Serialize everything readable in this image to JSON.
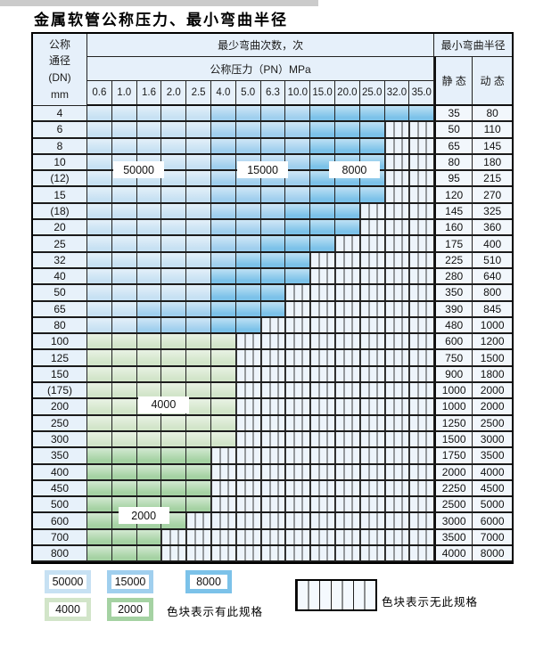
{
  "title": "金属软管公称压力、最小弯曲半径",
  "table": {
    "corner_header": "公称\n通径\n(DN)\nmm",
    "bend_cycles_header": "最少弯曲次数，次",
    "pressure_header": "公称压力（PN）MPa",
    "radius_header": "最小弯曲半径",
    "static_header": "静 态",
    "dynamic_header": "动 态",
    "pressure_columns": [
      "0.6",
      "1.0",
      "1.6",
      "2.0",
      "2.5",
      "4.0",
      "5.0",
      "6.3",
      "10.0",
      "15.0",
      "20.0",
      "25.0",
      "32.0",
      "35.0"
    ],
    "rows": [
      {
        "dn": "4",
        "static": "35",
        "dynamic": "80",
        "cells": "LLLLLMMMMDDDDD"
      },
      {
        "dn": "6",
        "static": "50",
        "dynamic": "110",
        "cells": "LLLLLMMMMDDDHH"
      },
      {
        "dn": "8",
        "static": "65",
        "dynamic": "145",
        "cells": "LLLLLMMMMDDDHH"
      },
      {
        "dn": "10",
        "static": "80",
        "dynamic": "180",
        "cells": "LLLLLMMMMDDDHH"
      },
      {
        "dn": "(12)",
        "static": "95",
        "dynamic": "215",
        "cells": "LLLLLMMMMDDDHH"
      },
      {
        "dn": "15",
        "static": "120",
        "dynamic": "270",
        "cells": "LLLLLMMMMDDDHH"
      },
      {
        "dn": "(18)",
        "static": "145",
        "dynamic": "325",
        "cells": "LLLLLMMMDDDHHH"
      },
      {
        "dn": "20",
        "static": "160",
        "dynamic": "360",
        "cells": "LLLLLMMMDDDHHH"
      },
      {
        "dn": "25",
        "static": "175",
        "dynamic": "400",
        "cells": "LLLLLMMDDDHHHH"
      },
      {
        "dn": "32",
        "static": "225",
        "dynamic": "510",
        "cells": "LLLLLMDDDHHHHH"
      },
      {
        "dn": "40",
        "static": "280",
        "dynamic": "640",
        "cells": "LLLLLDDDDHHHHH"
      },
      {
        "dn": "50",
        "static": "350",
        "dynamic": "800",
        "cells": "LLLLLDDDHHHHHH"
      },
      {
        "dn": "65",
        "static": "390",
        "dynamic": "845",
        "cells": "LLMMMDDDHHHHHH"
      },
      {
        "dn": "80",
        "static": "480",
        "dynamic": "1000",
        "cells": "LLMMMDDHHHHHHH"
      },
      {
        "dn": "100",
        "static": "600",
        "dynamic": "1200",
        "cells": "GGGGGGHHHHHHHH"
      },
      {
        "dn": "125",
        "static": "750",
        "dynamic": "1500",
        "cells": "GGGGGGHHHHHHHH"
      },
      {
        "dn": "150",
        "static": "900",
        "dynamic": "1800",
        "cells": "GGGGGGHHHHHHHH"
      },
      {
        "dn": "(175)",
        "static": "1000",
        "dynamic": "2000",
        "cells": "GGGGGGHHHHHHHH"
      },
      {
        "dn": "200",
        "static": "1000",
        "dynamic": "2000",
        "cells": "GGGGGGHHHHHHHH"
      },
      {
        "dn": "250",
        "static": "1250",
        "dynamic": "2500",
        "cells": "GGGGGGHHHHHHHH"
      },
      {
        "dn": "300",
        "static": "1500",
        "dynamic": "3000",
        "cells": "GGGGGGHHHHHHHH"
      },
      {
        "dn": "350",
        "static": "1750",
        "dynamic": "3500",
        "cells": "EEEEEHHHHHHHHH"
      },
      {
        "dn": "400",
        "static": "2000",
        "dynamic": "4000",
        "cells": "EEEEEHHHHHHHHH"
      },
      {
        "dn": "450",
        "static": "2250",
        "dynamic": "4500",
        "cells": "EEEEEHHHHHHHHH"
      },
      {
        "dn": "500",
        "static": "2500",
        "dynamic": "5000",
        "cells": "EEEEEHHHHHHHHH"
      },
      {
        "dn": "600",
        "static": "3000",
        "dynamic": "6000",
        "cells": "EEEEHHHHHHHHHH"
      },
      {
        "dn": "700",
        "static": "3500",
        "dynamic": "7000",
        "cells": "EEEHHHHHHHHHHH"
      },
      {
        "dn": "800",
        "static": "4000",
        "dynamic": "8000",
        "cells": "EEEHHHHHHHHHHH"
      }
    ]
  },
  "zone_colors": {
    "L": "#c7e1f3",
    "M": "#a0cfee",
    "D": "#7cc2e9",
    "G": "#d2e5c9",
    "E": "#a5d2a3"
  },
  "zone_labels": [
    {
      "text": "50000",
      "col_anchor": 2.0,
      "row_anchor": 3.8
    },
    {
      "text": "15000",
      "col_anchor": 7.0,
      "row_anchor": 3.8
    },
    {
      "text": "8000",
      "col_anchor": 10.7,
      "row_anchor": 3.8
    },
    {
      "text": "4000",
      "col_anchor": 3.0,
      "row_anchor": 18.2
    },
    {
      "text": "2000",
      "col_anchor": 2.2,
      "row_anchor": 25.0
    }
  ],
  "legend": {
    "blue_items": [
      {
        "label": "50000",
        "color": "#c7e1f3"
      },
      {
        "label": "15000",
        "color": "#a0cfee"
      },
      {
        "label": "8000",
        "color": "#7cc2e9"
      }
    ],
    "green_items": [
      {
        "label": "4000",
        "color": "#d2e5c9"
      },
      {
        "label": "2000",
        "color": "#a5d2a3"
      }
    ],
    "present_note": "色块表示有此规格",
    "absent_note": "色块表示无此规格"
  }
}
